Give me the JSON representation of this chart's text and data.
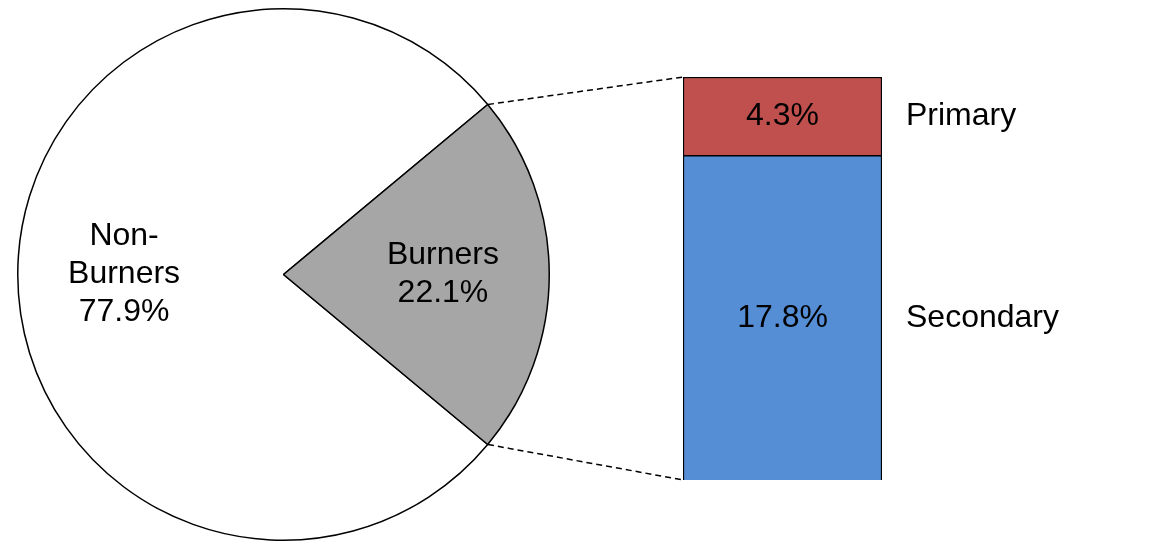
{
  "chart_data": [
    {
      "type": "pie",
      "categories": [
        "Non-Burners",
        "Burners"
      ],
      "values": [
        77.9,
        22.1
      ],
      "colors": [
        "#ffffff",
        "#a6a6a6"
      ],
      "value_labels": [
        "77.9%",
        "22.1%"
      ],
      "legend": false
    },
    {
      "type": "bar",
      "stacked": true,
      "categories": [
        null
      ],
      "tick_labels": false,
      "legend": false,
      "series": [
        {
          "name": "Secondary",
          "color": "#558ed5",
          "values": [
            17.8
          ],
          "value_labels": [
            "17.8%"
          ]
        },
        {
          "name": "Primary",
          "color": "#c0504d",
          "values": [
            4.3
          ],
          "value_labels": [
            "4.3%"
          ]
        }
      ]
    }
  ]
}
